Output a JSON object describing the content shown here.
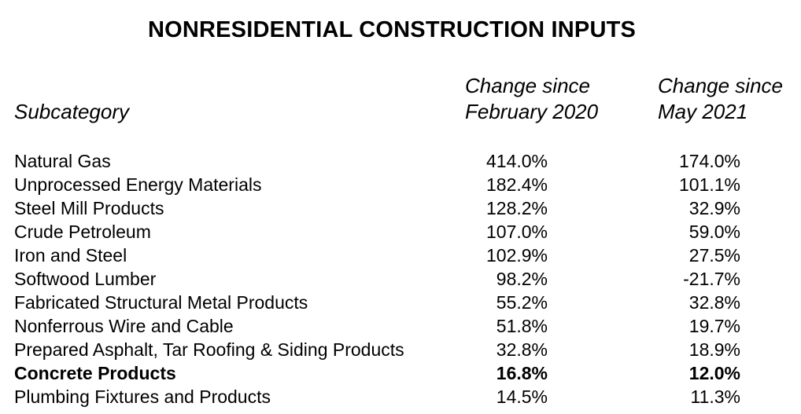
{
  "title": "NONRESIDENTIAL CONSTRUCTION INPUTS",
  "headers": {
    "subcategory": "Subcategory",
    "feb2020_line1": "Change since",
    "feb2020_line2": "February 2020",
    "may2021_line1": "Change since",
    "may2021_line2": "May 2021"
  },
  "rows": [
    {
      "name": "Natural Gas",
      "feb2020": "414.0%",
      "may2021": "174.0%",
      "bold": false
    },
    {
      "name": "Unprocessed Energy Materials",
      "feb2020": "182.4%",
      "may2021": "101.1%",
      "bold": false
    },
    {
      "name": "Steel Mill Products",
      "feb2020": "128.2%",
      "may2021": "32.9%",
      "bold": false
    },
    {
      "name": "Crude Petroleum",
      "feb2020": "107.0%",
      "may2021": "59.0%",
      "bold": false
    },
    {
      "name": "Iron and Steel",
      "feb2020": "102.9%",
      "may2021": "27.5%",
      "bold": false
    },
    {
      "name": "Softwood Lumber",
      "feb2020": "98.2%",
      "may2021": "-21.7%",
      "bold": false
    },
    {
      "name": "Fabricated Structural Metal Products",
      "feb2020": "55.2%",
      "may2021": "32.8%",
      "bold": false
    },
    {
      "name": "Nonferrous Wire and Cable",
      "feb2020": "51.8%",
      "may2021": "19.7%",
      "bold": false
    },
    {
      "name": "Prepared Asphalt, Tar Roofing & Siding Products",
      "feb2020": "32.8%",
      "may2021": "18.9%",
      "bold": false
    },
    {
      "name": "Concrete Products",
      "feb2020": "16.8%",
      "may2021": "12.0%",
      "bold": true
    },
    {
      "name": "Plumbing Fixtures and Products",
      "feb2020": "14.5%",
      "may2021": "11.3%",
      "bold": false
    }
  ]
}
